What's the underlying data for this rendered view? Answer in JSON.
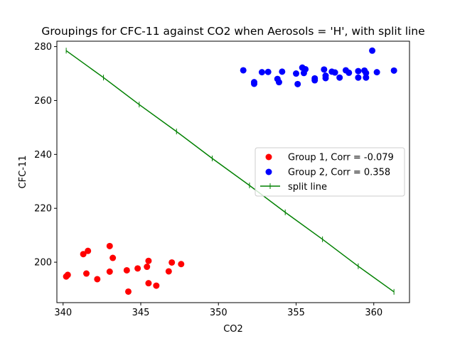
{
  "chart_data": {
    "type": "scatter",
    "title": "Groupings for CFC-11 against CO2 when Aerosols = 'H', with split line",
    "xlabel": "CO2",
    "ylabel": "CFC-11",
    "xlim": [
      339.6,
      362.3
    ],
    "ylim": [
      185,
      282
    ],
    "xticks": [
      340,
      345,
      350,
      355,
      360
    ],
    "yticks": [
      200,
      220,
      240,
      260,
      280
    ],
    "grid": false,
    "legend_position": "center-right",
    "series": [
      {
        "name": "Group 1, Corr = -0.079",
        "color": "#ff0000",
        "points": [
          [
            340.2,
            194.7
          ],
          [
            340.3,
            195.3
          ],
          [
            341.3,
            203.0
          ],
          [
            341.5,
            195.8
          ],
          [
            341.6,
            204.2
          ],
          [
            342.2,
            193.7
          ],
          [
            343.0,
            206.0
          ],
          [
            343.0,
            196.5
          ],
          [
            343.2,
            201.6
          ],
          [
            344.1,
            197.0
          ],
          [
            344.2,
            189.1
          ],
          [
            344.8,
            197.7
          ],
          [
            345.4,
            198.3
          ],
          [
            345.5,
            200.5
          ],
          [
            345.5,
            192.2
          ],
          [
            346.0,
            191.3
          ],
          [
            346.8,
            196.6
          ],
          [
            347.0,
            199.9
          ],
          [
            347.6,
            199.3
          ]
        ]
      },
      {
        "name": "Group 2, Corr = 0.358",
        "color": "#0000ff",
        "points": [
          [
            351.6,
            271.2
          ],
          [
            352.3,
            266.2
          ],
          [
            352.3,
            266.8
          ],
          [
            352.8,
            270.5
          ],
          [
            353.2,
            270.6
          ],
          [
            353.8,
            268.0
          ],
          [
            353.9,
            266.8
          ],
          [
            354.1,
            270.7
          ],
          [
            355.0,
            270.0
          ],
          [
            355.1,
            266.1
          ],
          [
            355.4,
            272.2
          ],
          [
            355.5,
            270.2
          ],
          [
            355.6,
            271.6
          ],
          [
            356.2,
            267.5
          ],
          [
            356.2,
            268.2
          ],
          [
            356.8,
            271.5
          ],
          [
            356.9,
            269.2
          ],
          [
            356.9,
            268.3
          ],
          [
            357.3,
            270.7
          ],
          [
            357.5,
            270.4
          ],
          [
            357.8,
            268.5
          ],
          [
            358.2,
            271.2
          ],
          [
            358.4,
            270.3
          ],
          [
            359.0,
            270.9
          ],
          [
            359.0,
            268.5
          ],
          [
            359.4,
            271.1
          ],
          [
            359.5,
            270.2
          ],
          [
            359.5,
            268.5
          ],
          [
            359.9,
            278.5
          ],
          [
            360.2,
            270.5
          ],
          [
            361.3,
            271.1
          ]
        ]
      }
    ],
    "split_line": {
      "name": "split line",
      "color": "#008000",
      "points": [
        [
          340.2,
          278.5
        ],
        [
          342.6,
          268.5
        ],
        [
          344.9,
          258.5
        ],
        [
          347.3,
          248.5
        ],
        [
          349.6,
          238.5
        ],
        [
          352.0,
          228.5
        ],
        [
          354.3,
          218.5
        ],
        [
          356.7,
          208.5
        ],
        [
          359.0,
          198.5
        ],
        [
          361.3,
          189.0
        ]
      ]
    }
  }
}
